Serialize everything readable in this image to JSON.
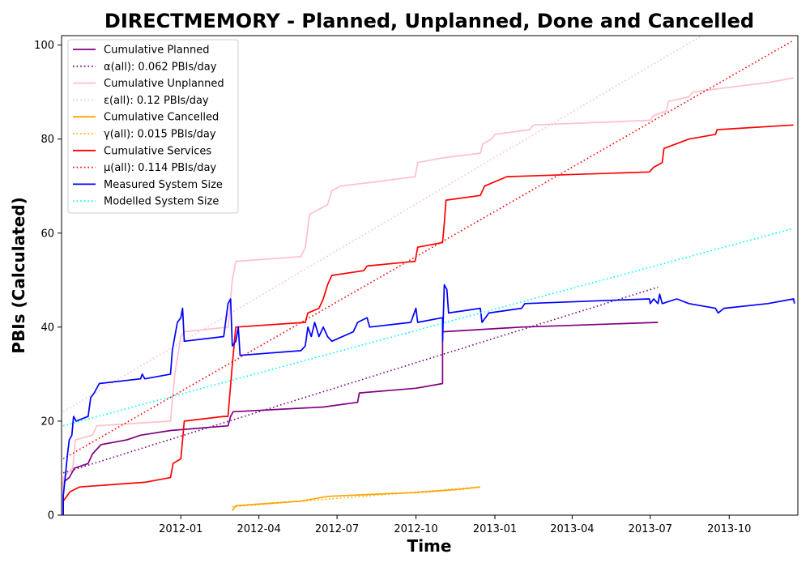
{
  "chart_data": {
    "type": "line",
    "title": "DIRECTMEMORY - Planned, Unplanned, Done  and Cancelled",
    "xlabel": "Time",
    "ylabel": "PBIs (Calculated)",
    "xlim": [
      "2011-08-15",
      "2013-12-20"
    ],
    "ylim": [
      0,
      102
    ],
    "x_ticks": [
      "2012-01-01",
      "2012-04-01",
      "2012-07-01",
      "2012-10-01",
      "2013-01-01",
      "2013-04-01",
      "2013-07-01",
      "2013-10-01"
    ],
    "x_tick_labels": [
      "2012-01",
      "2012-04",
      "2012-07",
      "2012-10",
      "2013-01",
      "2013-04",
      "2013-07",
      "2013-10"
    ],
    "y_ticks": [
      0,
      20,
      40,
      60,
      80,
      100
    ],
    "grid": false,
    "legend_position": "top-left",
    "series": [
      {
        "name": "Cumulative Planned",
        "style": "solid",
        "color": "#800080",
        "points": [
          [
            "2011-08-17",
            0
          ],
          [
            "2011-08-17",
            7
          ],
          [
            "2011-08-24",
            8
          ],
          [
            "2011-08-30",
            10
          ],
          [
            "2011-09-15",
            11
          ],
          [
            "2011-09-20",
            13
          ],
          [
            "2011-09-30",
            15
          ],
          [
            "2011-10-30",
            16
          ],
          [
            "2011-11-15",
            17
          ],
          [
            "2011-12-20",
            18
          ],
          [
            "2012-02-25",
            19
          ],
          [
            "2012-02-28",
            21
          ],
          [
            "2012-03-02",
            22
          ],
          [
            "2012-06-15",
            23
          ],
          [
            "2012-07-25",
            24
          ],
          [
            "2012-07-27",
            26
          ],
          [
            "2012-10-01",
            27
          ],
          [
            "2012-11-01",
            28
          ],
          [
            "2012-11-01",
            39
          ],
          [
            "2013-02-01",
            40
          ],
          [
            "2013-07-10",
            41
          ]
        ]
      },
      {
        "name": "α(all): 0.062 PBIs/day",
        "style": "dotted",
        "color": "#800080",
        "points": [
          [
            "2011-08-17",
            9
          ],
          [
            "2013-07-10",
            48.5
          ]
        ]
      },
      {
        "name": "Cumulative Unplanned",
        "style": "solid",
        "color": "#ffc0cb",
        "points": [
          [
            "2011-08-17",
            0
          ],
          [
            "2011-08-17",
            8
          ],
          [
            "2011-08-28",
            10
          ],
          [
            "2011-08-31",
            16
          ],
          [
            "2011-09-20",
            17
          ],
          [
            "2011-09-25",
            19
          ],
          [
            "2011-12-20",
            20
          ],
          [
            "2011-12-25",
            30
          ],
          [
            "2012-01-01",
            38
          ],
          [
            "2012-01-05",
            39
          ],
          [
            "2012-02-25",
            40
          ],
          [
            "2012-03-01",
            50
          ],
          [
            "2012-03-05",
            54
          ],
          [
            "2012-05-20",
            55
          ],
          [
            "2012-05-25",
            57
          ],
          [
            "2012-05-30",
            64
          ],
          [
            "2012-06-20",
            66
          ],
          [
            "2012-06-25",
            69
          ],
          [
            "2012-07-05",
            70
          ],
          [
            "2012-08-20",
            71
          ],
          [
            "2012-09-30",
            72
          ],
          [
            "2012-10-03",
            75
          ],
          [
            "2012-11-01",
            76
          ],
          [
            "2012-12-15",
            77
          ],
          [
            "2012-12-18",
            79
          ],
          [
            "2012-12-28",
            80
          ],
          [
            "2013-01-01",
            81
          ],
          [
            "2013-02-10",
            82
          ],
          [
            "2013-02-15",
            83
          ],
          [
            "2013-07-01",
            84
          ],
          [
            "2013-07-05",
            85
          ],
          [
            "2013-07-20",
            86
          ],
          [
            "2013-07-22",
            88
          ],
          [
            "2013-08-15",
            89
          ],
          [
            "2013-08-20",
            90
          ],
          [
            "2013-10-01",
            91
          ],
          [
            "2013-11-15",
            92
          ],
          [
            "2013-12-15",
            93
          ]
        ]
      },
      {
        "name": "ε(all): 0.12 PBIs/day",
        "style": "dotted",
        "color": "#ffc0cb",
        "points": [
          [
            "2011-08-17",
            22
          ],
          [
            "2013-08-30",
            102
          ]
        ]
      },
      {
        "name": "Cumulative Cancelled",
        "style": "solid",
        "color": "#ffa500",
        "points": [
          [
            "2012-03-01",
            1
          ],
          [
            "2012-03-05",
            2
          ],
          [
            "2012-05-20",
            3
          ],
          [
            "2012-06-20",
            4
          ],
          [
            "2012-08-20",
            4.5
          ],
          [
            "2012-10-01",
            4.8
          ],
          [
            "2012-11-20",
            5.5
          ],
          [
            "2012-12-15",
            6
          ]
        ]
      },
      {
        "name": "γ(all): 0.015 PBIs/day",
        "style": "dotted",
        "color": "#ffa500",
        "points": [
          [
            "2012-03-01",
            1.8
          ],
          [
            "2012-12-15",
            6
          ]
        ]
      },
      {
        "name": "Cumulative Services",
        "style": "solid",
        "color": "#ff0000",
        "points": [
          [
            "2011-08-17",
            0
          ],
          [
            "2011-08-17",
            3
          ],
          [
            "2011-08-25",
            5
          ],
          [
            "2011-09-05",
            6
          ],
          [
            "2011-11-20",
            7
          ],
          [
            "2011-12-20",
            8
          ],
          [
            "2011-12-23",
            11
          ],
          [
            "2012-01-01",
            12
          ],
          [
            "2012-01-05",
            20
          ],
          [
            "2012-02-20",
            21
          ],
          [
            "2012-02-25",
            21
          ],
          [
            "2012-03-01",
            32
          ],
          [
            "2012-03-05",
            40
          ],
          [
            "2012-05-25",
            41
          ],
          [
            "2012-05-28",
            43
          ],
          [
            "2012-06-10",
            44
          ],
          [
            "2012-06-15",
            46
          ],
          [
            "2012-06-20",
            49
          ],
          [
            "2012-06-25",
            51
          ],
          [
            "2012-08-01",
            52
          ],
          [
            "2012-08-05",
            53
          ],
          [
            "2012-09-30",
            54
          ],
          [
            "2012-10-03",
            57
          ],
          [
            "2012-11-01",
            58
          ],
          [
            "2012-11-03",
            62
          ],
          [
            "2012-11-05",
            67
          ],
          [
            "2012-12-15",
            68
          ],
          [
            "2012-12-20",
            70
          ],
          [
            "2013-01-15",
            72
          ],
          [
            "2013-06-30",
            73
          ],
          [
            "2013-07-05",
            74
          ],
          [
            "2013-07-15",
            75
          ],
          [
            "2013-07-17",
            78
          ],
          [
            "2013-08-15",
            80
          ],
          [
            "2013-09-15",
            81
          ],
          [
            "2013-09-17",
            82
          ],
          [
            "2013-12-15",
            83
          ]
        ]
      },
      {
        "name": "μ(all): 0.114 PBIs/day",
        "style": "dotted",
        "color": "#ff0000",
        "points": [
          [
            "2011-08-17",
            12
          ],
          [
            "2013-12-15",
            101
          ]
        ]
      },
      {
        "name": "Measured System Size",
        "style": "solid",
        "color": "#0000ff",
        "points": [
          [
            "2011-08-17",
            0
          ],
          [
            "2011-08-17",
            4
          ],
          [
            "2011-08-22",
            13
          ],
          [
            "2011-08-24",
            16
          ],
          [
            "2011-08-27",
            17
          ],
          [
            "2011-08-29",
            21
          ],
          [
            "2011-09-01",
            20
          ],
          [
            "2011-09-15",
            21
          ],
          [
            "2011-09-18",
            25
          ],
          [
            "2011-09-22",
            26
          ],
          [
            "2011-09-28",
            28
          ],
          [
            "2011-11-15",
            29
          ],
          [
            "2011-11-17",
            30
          ],
          [
            "2011-11-20",
            29
          ],
          [
            "2011-12-20",
            30
          ],
          [
            "2011-12-22",
            35
          ],
          [
            "2011-12-25",
            38
          ],
          [
            "2011-12-28",
            41
          ],
          [
            "2012-01-01",
            42
          ],
          [
            "2012-01-03",
            44
          ],
          [
            "2012-01-05",
            37
          ],
          [
            "2012-02-20",
            38
          ],
          [
            "2012-02-25",
            45
          ],
          [
            "2012-02-28",
            46
          ],
          [
            "2012-03-01",
            36
          ],
          [
            "2012-03-05",
            37
          ],
          [
            "2012-03-08",
            40
          ],
          [
            "2012-03-10",
            34
          ],
          [
            "2012-05-20",
            35
          ],
          [
            "2012-05-25",
            36
          ],
          [
            "2012-05-28",
            40
          ],
          [
            "2012-06-01",
            38
          ],
          [
            "2012-06-05",
            41
          ],
          [
            "2012-06-10",
            38
          ],
          [
            "2012-06-15",
            40
          ],
          [
            "2012-06-20",
            38
          ],
          [
            "2012-06-25",
            37
          ],
          [
            "2012-07-20",
            39
          ],
          [
            "2012-07-25",
            41
          ],
          [
            "2012-08-05",
            42
          ],
          [
            "2012-08-08",
            40
          ],
          [
            "2012-09-25",
            41
          ],
          [
            "2012-10-01",
            44
          ],
          [
            "2012-10-03",
            41
          ],
          [
            "2012-11-01",
            42
          ],
          [
            "2012-11-01",
            37
          ],
          [
            "2012-11-03",
            49
          ],
          [
            "2012-11-06",
            48
          ],
          [
            "2012-11-08",
            43
          ],
          [
            "2012-12-15",
            44
          ],
          [
            "2012-12-17",
            41
          ],
          [
            "2012-12-25",
            43
          ],
          [
            "2013-02-01",
            44
          ],
          [
            "2013-02-05",
            45
          ],
          [
            "2013-06-30",
            46
          ],
          [
            "2013-07-01",
            45
          ],
          [
            "2013-07-05",
            46
          ],
          [
            "2013-07-10",
            45
          ],
          [
            "2013-07-12",
            47
          ],
          [
            "2013-07-15",
            45
          ],
          [
            "2013-08-01",
            46
          ],
          [
            "2013-08-15",
            45
          ],
          [
            "2013-09-15",
            44
          ],
          [
            "2013-09-18",
            43
          ],
          [
            "2013-09-25",
            44
          ],
          [
            "2013-11-15",
            45
          ],
          [
            "2013-12-15",
            46
          ],
          [
            "2013-12-16",
            45
          ]
        ]
      },
      {
        "name": "Modelled System Size",
        "style": "dotted",
        "color": "#00ffff",
        "points": [
          [
            "2011-08-17",
            19
          ],
          [
            "2013-12-15",
            61
          ]
        ]
      }
    ]
  }
}
